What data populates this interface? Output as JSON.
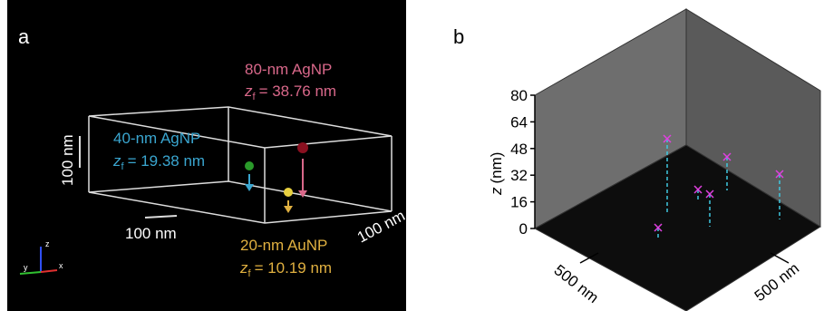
{
  "panel_a": {
    "label": "a",
    "particles": [
      {
        "name": "80-nm AgNP",
        "symbol": "z",
        "subscript": "f",
        "value": "= 38.76 nm"
      },
      {
        "name": "40-nm AgNP",
        "symbol": "z",
        "subscript": "f",
        "value": "= 19.38 nm"
      },
      {
        "name": "20-nm AuNP",
        "symbol": "z",
        "subscript": "f",
        "value": "= 10.19 nm"
      }
    ],
    "scale_labels": [
      "100 nm",
      "100 nm",
      "100 nm"
    ],
    "axis_triad": [
      "z",
      "y",
      "x"
    ]
  },
  "panel_b": {
    "label": "b",
    "z_axis_symbol": "z",
    "z_axis_unit": "(nm)",
    "zlim": [
      0,
      80
    ],
    "zticks": [
      0,
      16,
      32,
      48,
      64,
      80
    ],
    "scale_labels": [
      "500 nm",
      "500 nm"
    ]
  }
}
